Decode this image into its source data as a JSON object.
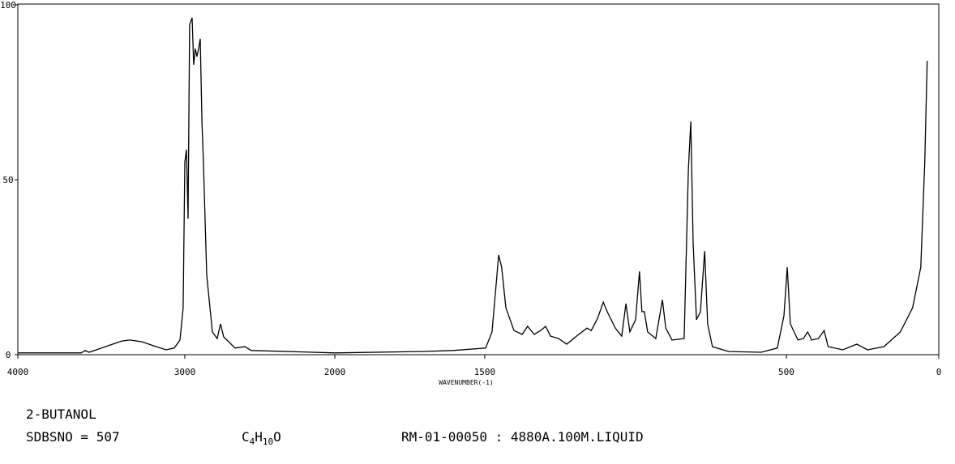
{
  "chart_data": {
    "type": "line",
    "x_label": "WAVENUMBER(-1)",
    "xlim": [
      4000,
      0
    ],
    "xticks": [
      4000,
      3000,
      2000,
      1500,
      500,
      0
    ],
    "ylim": [
      0,
      100
    ],
    "yticks": [
      0,
      50,
      100
    ],
    "color": "#000000",
    "x": [
      4000,
      3621,
      3597,
      3573,
      3476,
      3379,
      3330,
      3257,
      3184,
      3112,
      3063,
      3029,
      3010,
      3000,
      2989,
      2978,
      2968,
      2951,
      2941,
      2930,
      2919,
      2908,
      2897,
      2886,
      2876,
      2854,
      2816,
      2784,
      2762,
      2741,
      2665,
      2600,
      2557,
      2000,
      1712,
      1605,
      1497,
      1476,
      1462,
      1454,
      1444,
      1430,
      1403,
      1376,
      1358,
      1336,
      1315,
      1298,
      1282,
      1255,
      1228,
      1196,
      1161,
      1147,
      1126,
      1107,
      1094,
      1067,
      1046,
      1032,
      1019,
      1000,
      987,
      979,
      971,
      960,
      933,
      911,
      900,
      879,
      839,
      825,
      817,
      809,
      798,
      785,
      771,
      761,
      745,
      691,
      583,
      530,
      508,
      497,
      487,
      462,
      444,
      430,
      417,
      395,
      376,
      363,
      315,
      269,
      234,
      180,
      126,
      86,
      59,
      46,
      38
    ],
    "values": [
      0.5,
      0.5,
      1.2,
      0.7,
      2.3,
      3.9,
      4.2,
      3.7,
      2.5,
      1.4,
      1.9,
      4.2,
      13.4,
      55,
      58.6,
      38.9,
      94.4,
      96.3,
      82.9,
      87.5,
      85.2,
      87.5,
      90.3,
      66.7,
      55.1,
      22.7,
      6.5,
      4.6,
      8.8,
      5.1,
      1.9,
      2.3,
      1.2,
      0.5,
      0.9,
      1.2,
      1.9,
      6.5,
      20.4,
      28.5,
      25,
      13.4,
      6.9,
      5.8,
      8.1,
      5.8,
      6.9,
      8.1,
      5.3,
      4.6,
      3,
      5.3,
      7.6,
      6.9,
      10.4,
      15,
      12.3,
      7.6,
      5.3,
      14.6,
      6.5,
      10,
      23.8,
      12.3,
      12.3,
      6.5,
      4.6,
      15.7,
      7.6,
      4.2,
      4.6,
      52.8,
      66.7,
      31.9,
      10,
      12.3,
      29.6,
      8.8,
      2.3,
      0.9,
      0.7,
      1.9,
      11.1,
      25,
      8.8,
      4.2,
      4.6,
      6.5,
      4.2,
      4.6,
      6.9,
      2.3,
      1.4,
      3,
      1.4,
      2.3,
      6.5,
      13.4,
      25,
      55,
      84
    ]
  },
  "info": {
    "name": "2-BUTANOL",
    "sdbs": "SDBSNO = 507",
    "formula": "C4H10O",
    "condition": "RM-01-00050 : 4880A.100M.LIQUID"
  }
}
